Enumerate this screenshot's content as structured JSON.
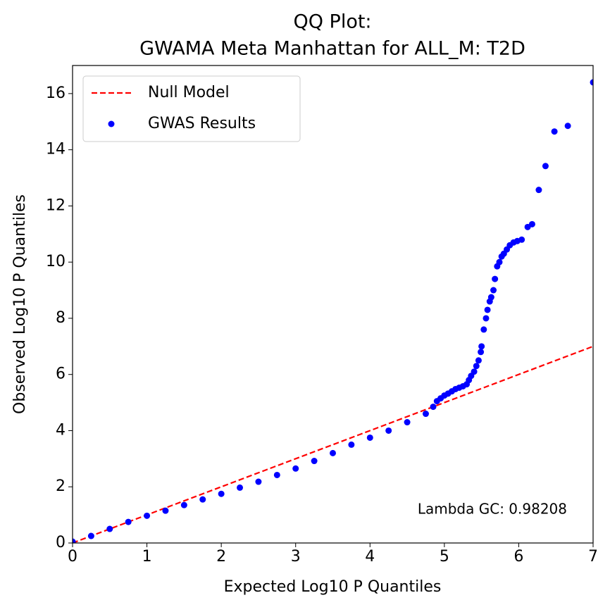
{
  "chart_data": {
    "type": "scatter",
    "title_lines": [
      "QQ Plot:",
      "GWAMA Meta Manhattan for ALL_M: T2D"
    ],
    "x_label": "Expected Log10 P Quantiles",
    "y_label": "Observed Log10 P Quantiles",
    "annotation": "Lambda GC: 0.98208",
    "xlim": [
      0,
      7
    ],
    "ylim": [
      0,
      17
    ],
    "xticks": [
      0,
      1,
      2,
      3,
      4,
      5,
      6,
      7
    ],
    "yticks": [
      0,
      2,
      4,
      6,
      8,
      10,
      12,
      14,
      16
    ],
    "legend": "upper left",
    "null_model": {
      "name": "Null Model",
      "color": "#ff0000",
      "x": [
        0,
        7
      ],
      "y": [
        0,
        7
      ]
    },
    "series": [
      {
        "name": "GWAS Results",
        "color": "#0000ff",
        "x": [
          0,
          0.25,
          0.5,
          0.75,
          1,
          1.25,
          1.5,
          1.75,
          2,
          2.25,
          2.5,
          2.75,
          3,
          3.25,
          3.5,
          3.75,
          4,
          4.25,
          4.5,
          4.75,
          4.85,
          4.9,
          4.95,
          5.0,
          5.05,
          5.1,
          5.15,
          5.2,
          5.25,
          5.3,
          5.33,
          5.36,
          5.4,
          5.43,
          5.46,
          5.49,
          5.5,
          5.53,
          5.56,
          5.58,
          5.61,
          5.63,
          5.66,
          5.68,
          5.71,
          5.74,
          5.77,
          5.8,
          5.84,
          5.88,
          5.93,
          5.98,
          6.04,
          6.12,
          6.18,
          6.27,
          6.36,
          6.48,
          6.66,
          7.0
        ],
        "values": [
          0.05,
          0.25,
          0.5,
          0.75,
          0.97,
          1.15,
          1.35,
          1.55,
          1.75,
          1.97,
          2.18,
          2.42,
          2.65,
          2.92,
          3.2,
          3.5,
          3.75,
          4.0,
          4.3,
          4.6,
          4.85,
          5.05,
          5.15,
          5.25,
          5.32,
          5.4,
          5.48,
          5.53,
          5.58,
          5.65,
          5.8,
          5.95,
          6.1,
          6.3,
          6.5,
          6.8,
          7.0,
          7.6,
          8.0,
          8.3,
          8.6,
          8.75,
          9.0,
          9.4,
          9.85,
          10.0,
          10.2,
          10.3,
          10.45,
          10.6,
          10.7,
          10.75,
          10.8,
          11.25,
          11.35,
          12.57,
          13.42,
          14.65,
          14.85,
          16.4
        ]
      }
    ]
  }
}
